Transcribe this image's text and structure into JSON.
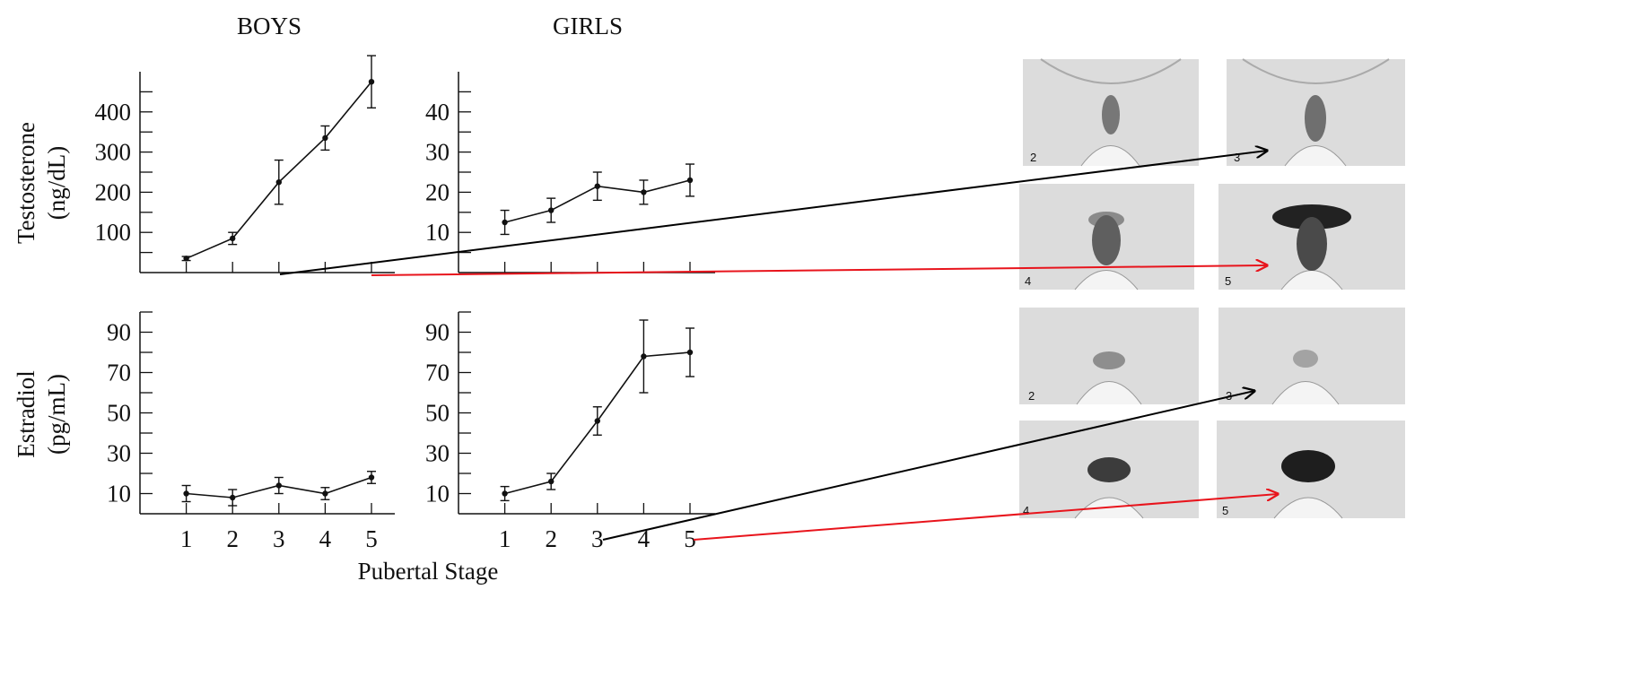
{
  "figure": {
    "column_titles": [
      "BOYS",
      "GIRLS"
    ],
    "row_labels": [
      {
        "line1": "Testosterone",
        "line2": "(ng/dL)"
      },
      {
        "line1": "Estradiol",
        "line2": "(pg/mL)"
      }
    ],
    "xlabel": "Pubertal Stage",
    "photo_labels_male": [
      "2",
      "3",
      "4",
      "5"
    ],
    "photo_labels_female": [
      "2",
      "3",
      "4",
      "5"
    ],
    "colors": {
      "line": "#111111",
      "arrow_black": "#000000",
      "arrow_red": "#e8141c"
    }
  },
  "chart_data": [
    {
      "type": "line",
      "panel": "boys-testosterone",
      "x": [
        1,
        2,
        3,
        4,
        5
      ],
      "values": [
        35,
        85,
        225,
        335,
        475
      ],
      "errors": [
        5,
        15,
        55,
        30,
        65
      ],
      "yticks": [
        100,
        200,
        300,
        400
      ],
      "ylim": [
        0,
        500
      ],
      "xlim": [
        0,
        5.5
      ]
    },
    {
      "type": "line",
      "panel": "girls-testosterone",
      "x": [
        1,
        2,
        3,
        4,
        5
      ],
      "values": [
        12.5,
        15.5,
        21.5,
        20,
        23
      ],
      "errors": [
        3,
        3,
        3.5,
        3,
        4
      ],
      "yticks": [
        10,
        20,
        30,
        40
      ],
      "ylim": [
        0,
        50
      ],
      "xlim": [
        0,
        5.5
      ]
    },
    {
      "type": "line",
      "panel": "boys-estradiol",
      "x": [
        1,
        2,
        3,
        4,
        5
      ],
      "values": [
        10,
        8,
        14,
        10,
        18
      ],
      "errors": [
        4,
        4,
        4,
        3,
        3
      ],
      "yticks": [
        10,
        30,
        50,
        70,
        90
      ],
      "ylim": [
        0,
        100
      ],
      "xlim": [
        0,
        5.5
      ]
    },
    {
      "type": "line",
      "panel": "girls-estradiol",
      "x": [
        1,
        2,
        3,
        4,
        5
      ],
      "values": [
        10,
        16,
        46,
        78,
        80
      ],
      "errors": [
        3.5,
        4,
        7,
        18,
        12
      ],
      "yticks": [
        10,
        30,
        50,
        70,
        90
      ],
      "ylim": [
        0,
        100
      ],
      "xlim": [
        0,
        5.5
      ],
      "xticks": [
        "1",
        "2",
        "3",
        "4",
        "5"
      ]
    }
  ]
}
